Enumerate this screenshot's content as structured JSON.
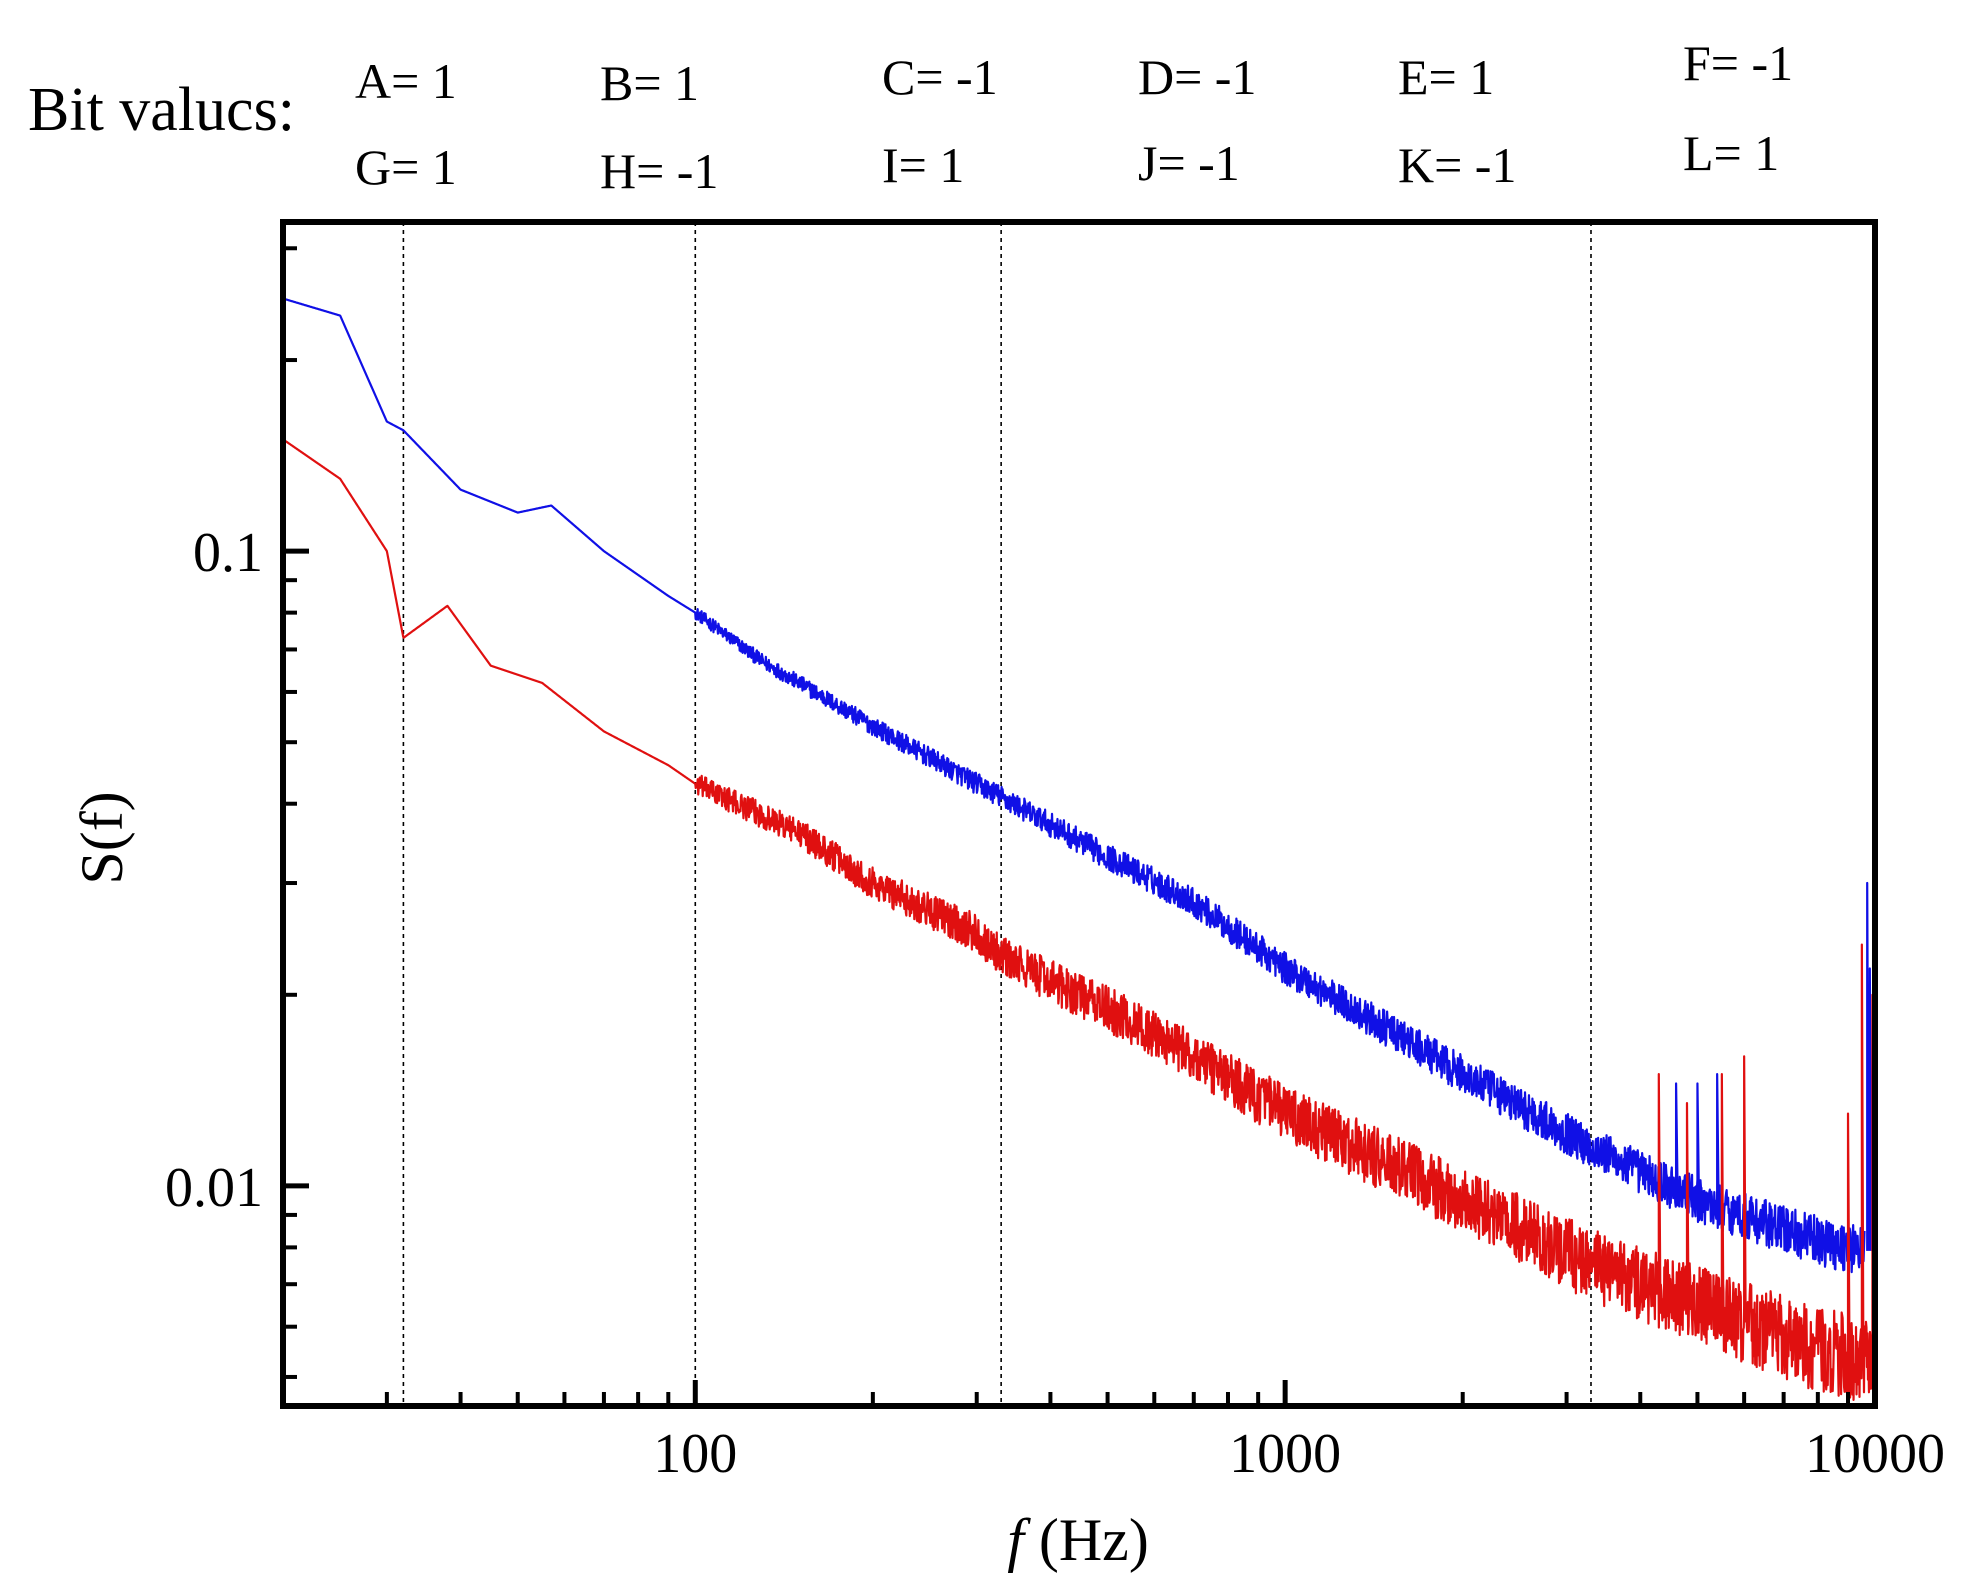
{
  "chart_data": {
    "type": "line",
    "title": "",
    "xlabel_var": "f",
    "xlabel_unit": "(Hz)",
    "ylabel": "S(f)",
    "xscale": "log",
    "yscale": "log",
    "xlim": [
      20,
      10000
    ],
    "ylim": [
      0.0045,
      0.33
    ],
    "x_tick_labels": [
      {
        "value": 100,
        "label": "100"
      },
      {
        "value": 1000,
        "label": "1000"
      },
      {
        "value": 10000,
        "label": "10000"
      }
    ],
    "y_tick_labels": [
      {
        "value": 0.1,
        "label": "0.1"
      },
      {
        "value": 0.01,
        "label": "0.01"
      }
    ],
    "vertical_lines": [
      32,
      100,
      330,
      3300
    ],
    "bit_values": {
      "title": "Bit valucs:",
      "rows": [
        [
          "A= 1",
          "B= 1",
          "C= -1",
          "D= -1",
          "E= 1",
          "F= -1"
        ],
        [
          "G= 1",
          "H= -1",
          "I= 1",
          "J= -1",
          "K= -1",
          "L= 1"
        ]
      ]
    },
    "series": [
      {
        "name": "blue",
        "color": "#1010e6",
        "noise_start_hz": 100,
        "noise_max": 0.04,
        "points": [
          [
            20,
            0.25
          ],
          [
            25,
            0.235
          ],
          [
            30,
            0.16
          ],
          [
            32,
            0.155
          ],
          [
            40,
            0.125
          ],
          [
            50,
            0.115
          ],
          [
            57,
            0.118
          ],
          [
            70,
            0.1
          ],
          [
            90,
            0.085
          ],
          [
            100,
            0.08
          ],
          [
            130,
            0.067
          ],
          [
            200,
            0.053
          ],
          [
            300,
            0.043
          ],
          [
            330,
            0.041
          ],
          [
            500,
            0.033
          ],
          [
            700,
            0.028
          ],
          [
            1000,
            0.022
          ],
          [
            2000,
            0.015
          ],
          [
            3300,
            0.0115
          ],
          [
            5000,
            0.0095
          ],
          [
            8000,
            0.0082
          ],
          [
            9600,
            0.0079
          ]
        ],
        "spikes": [
          [
            4600,
            0.0145
          ],
          [
            5000,
            0.0145
          ],
          [
            5400,
            0.015
          ],
          [
            9700,
            0.03
          ],
          [
            9800,
            0.022
          ],
          [
            9900,
            0.013
          ]
        ]
      },
      {
        "name": "red",
        "color": "#e01010",
        "noise_start_hz": 100,
        "noise_max": 0.07,
        "points": [
          [
            20,
            0.15
          ],
          [
            25,
            0.13
          ],
          [
            30,
            0.1
          ],
          [
            32,
            0.073
          ],
          [
            38,
            0.082
          ],
          [
            45,
            0.066
          ],
          [
            55,
            0.062
          ],
          [
            70,
            0.052
          ],
          [
            90,
            0.046
          ],
          [
            100,
            0.043
          ],
          [
            150,
            0.036
          ],
          [
            200,
            0.03
          ],
          [
            300,
            0.025
          ],
          [
            330,
            0.023
          ],
          [
            500,
            0.019
          ],
          [
            700,
            0.016
          ],
          [
            1000,
            0.013
          ],
          [
            2000,
            0.0095
          ],
          [
            3300,
            0.0075
          ],
          [
            5000,
            0.0065
          ],
          [
            8000,
            0.0055
          ],
          [
            9900,
            0.0053
          ]
        ],
        "spikes": [
          [
            4300,
            0.015
          ],
          [
            4800,
            0.0135
          ],
          [
            5500,
            0.015
          ],
          [
            6000,
            0.016
          ],
          [
            9000,
            0.013
          ],
          [
            9500,
            0.024
          ],
          [
            9900,
            0.02
          ]
        ]
      }
    ]
  }
}
